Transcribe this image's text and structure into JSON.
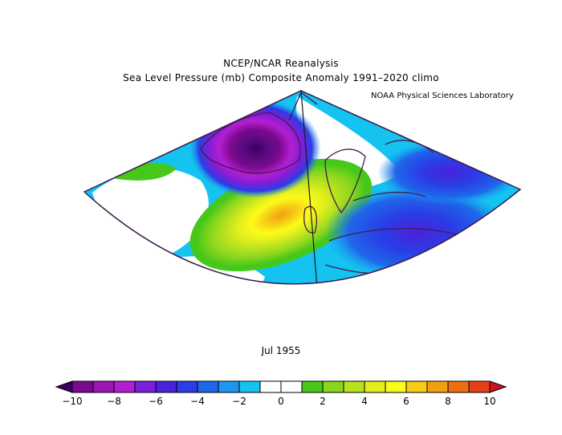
{
  "title_line1": "NCEP/NCAR Reanalysis",
  "title_line2": "Sea Level Pressure (mb) Composite Anomaly 1991–2020 climo",
  "credit": "NOAA Physical Sciences Laboratory",
  "period": "Jul 1955",
  "colorbar": {
    "min": -10,
    "max": 10,
    "step": 1,
    "tick_labels": [
      "−10",
      "−8",
      "−6",
      "−4",
      "−2",
      "0",
      "2",
      "4",
      "6",
      "8",
      "10"
    ],
    "colors": [
      "#3c0060",
      "#7b0a8e",
      "#9b16b4",
      "#b41ed2",
      "#7a1fd7",
      "#4a22d9",
      "#2a3de6",
      "#1e67ea",
      "#1e96ef",
      "#14c3f0",
      "#ffffff",
      "#ffffff",
      "#47c71a",
      "#8ad61e",
      "#b8e21f",
      "#e3ef1c",
      "#fbfb1a",
      "#f6cc16",
      "#f1a014",
      "#ee6f10",
      "#e6401a",
      "#c8141a"
    ]
  },
  "map": {
    "anomaly_features": [
      {
        "name": "greenland-low",
        "label": "negative anomaly centered over Greenland",
        "peak": -9
      },
      {
        "name": "atlantic-high",
        "label": "positive anomaly west of the British Isles / North Sea",
        "peak": 7
      },
      {
        "name": "continental-low",
        "label": "negative anomaly over central/eastern Europe and Russia",
        "peak": -5
      }
    ]
  }
}
